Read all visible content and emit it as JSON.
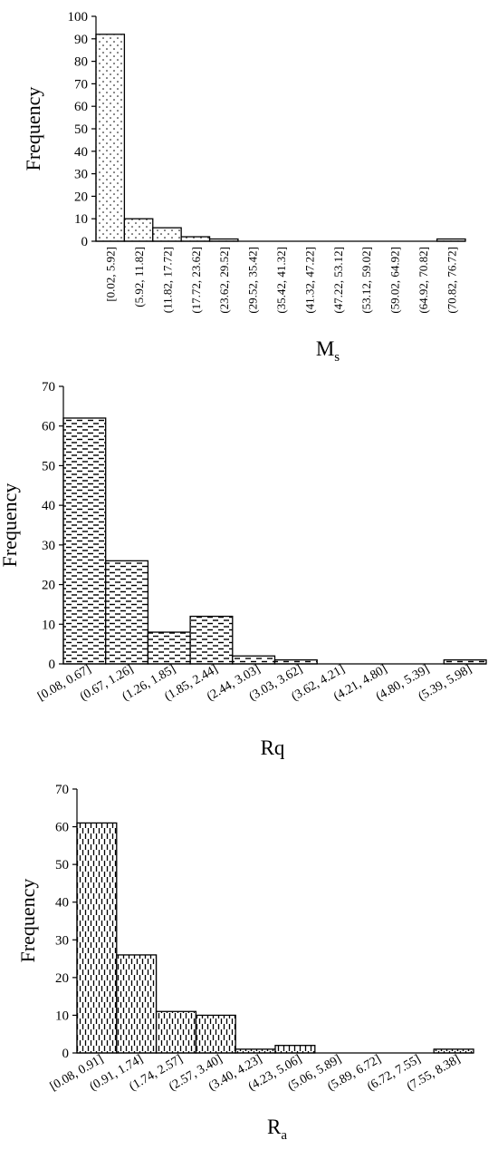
{
  "chart_data": [
    {
      "type": "bar",
      "title": "",
      "xlabel": "M",
      "xlabel_sub": "s",
      "ylabel": "Frequency",
      "ylim": [
        0,
        100
      ],
      "yticks": [
        0,
        10,
        20,
        30,
        40,
        50,
        60,
        70,
        80,
        90,
        100
      ],
      "categories": [
        "[0.02, 5.92]",
        "(5.92, 11.82]",
        "(11.82, 17.72]",
        "(17.72, 23.62]",
        "(23.62, 29.52]",
        "(29.52, 35.42]",
        "(35.42, 41.32]",
        "(41.32, 47.22]",
        "(47.22, 53.12]",
        "(53.12, 59.02]",
        "(59.02, 64.92]",
        "(64.92, 70.82]",
        "(70.82, 76.72]"
      ],
      "values": [
        92,
        10,
        6,
        2,
        1,
        0,
        0,
        0,
        0,
        0,
        0,
        0,
        1
      ],
      "pattern": "dots",
      "grid": false
    },
    {
      "type": "bar",
      "title": "",
      "xlabel": "Rq",
      "xlabel_sub": "",
      "ylabel": "Frequency",
      "ylim": [
        0,
        70
      ],
      "yticks": [
        0,
        10,
        20,
        30,
        40,
        50,
        60,
        70
      ],
      "categories": [
        "[0.08, 0.67]",
        "(0.67, 1.26]",
        "(1.26, 1.85]",
        "(1.85, 2.44]",
        "(2.44, 3.03]",
        "(3.03, 3.62]",
        "(3.62, 4.21]",
        "(4.21, 4.80]",
        "(4.80, 5.39]",
        "(5.39, 5.98]"
      ],
      "values": [
        62,
        26,
        8,
        12,
        2,
        1,
        0,
        0,
        0,
        1
      ],
      "pattern": "horizontal-dashes",
      "grid": false
    },
    {
      "type": "bar",
      "title": "",
      "xlabel": "R",
      "xlabel_sub": "a",
      "ylabel": "Frequency",
      "ylim": [
        0,
        70
      ],
      "yticks": [
        0,
        10,
        20,
        30,
        40,
        50,
        60,
        70
      ],
      "categories": [
        "[0.08, 0.91]",
        "(0.91, 1.74]",
        "(1.74, 2.57]",
        "(2.57, 3.40]",
        "(3.40, 4.23]",
        "(4.23, 5.06]",
        "(5.06, 5.89]",
        "(5.89, 6.72]",
        "(6.72, 7.55]",
        "(7.55, 8.38]"
      ],
      "values": [
        61,
        26,
        11,
        10,
        1,
        2,
        0,
        0,
        0,
        1
      ],
      "pattern": "vertical-dashes",
      "grid": false
    }
  ]
}
